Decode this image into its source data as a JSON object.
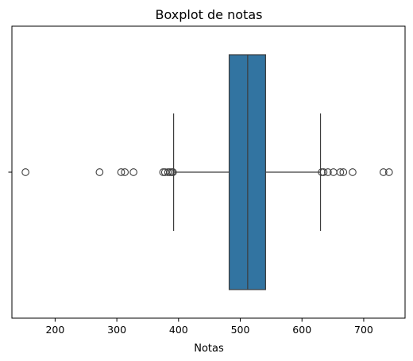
{
  "chart_data": {
    "type": "boxplot",
    "orientation": "horizontal",
    "title": "Boxplot de notas",
    "xlabel": "Notas",
    "ylabel": "",
    "xlim": [
      130,
      767
    ],
    "xticks": [
      200,
      300,
      400,
      500,
      600,
      700
    ],
    "xtick_labels": [
      "200",
      "300",
      "400",
      "500",
      "600",
      "700"
    ],
    "grid": false,
    "box_color": "#3274a1",
    "line_color": "#3d3d3d",
    "box": {
      "whisker_low": 392,
      "q1": 482,
      "median": 512,
      "q3": 541,
      "whisker_high": 630
    },
    "outliers": [
      152,
      272,
      307,
      313,
      327,
      375,
      378,
      383,
      386,
      389,
      391,
      632,
      635,
      642,
      651,
      662,
      667,
      682,
      732,
      741
    ]
  }
}
